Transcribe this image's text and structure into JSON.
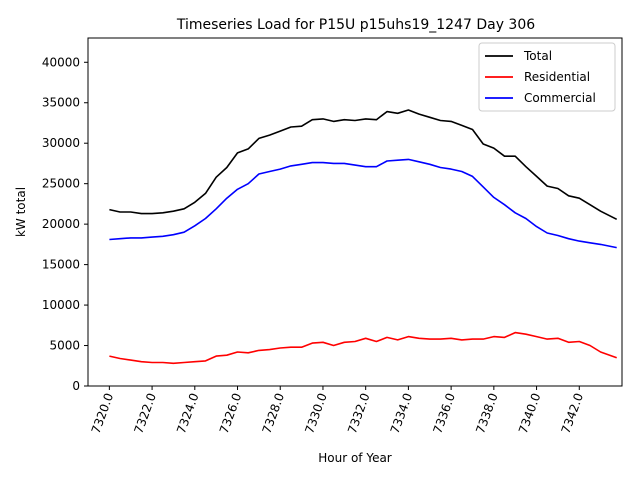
{
  "chart_data": {
    "type": "line",
    "title": "Timeseries Load for P15U p15uhs19_1247  Day 306",
    "xlabel": "Hour of Year",
    "ylabel": "kW total",
    "xlim": [
      7319.0,
      7344.0
    ],
    "ylim": [
      0,
      43000
    ],
    "xticks": [
      7320.0,
      7322.0,
      7324.0,
      7326.0,
      7328.0,
      7330.0,
      7332.0,
      7334.0,
      7336.0,
      7338.0,
      7340.0,
      7342.0
    ],
    "xtick_labels": [
      "7320.0",
      "7322.0",
      "7324.0",
      "7326.0",
      "7328.0",
      "7330.0",
      "7332.0",
      "7334.0",
      "7336.0",
      "7338.0",
      "7340.0",
      "7342.0"
    ],
    "yticks": [
      0,
      5000,
      10000,
      15000,
      20000,
      25000,
      30000,
      35000,
      40000
    ],
    "ytick_labels": [
      "0",
      "5000",
      "10000",
      "15000",
      "20000",
      "25000",
      "30000",
      "35000",
      "40000"
    ],
    "legend_position": "top-right",
    "x": [
      7320.0,
      7320.5,
      7321.0,
      7321.5,
      7322.0,
      7322.5,
      7323.0,
      7323.5,
      7324.0,
      7324.5,
      7325.0,
      7325.5,
      7326.0,
      7326.5,
      7327.0,
      7327.5,
      7328.0,
      7328.5,
      7329.0,
      7329.5,
      7330.0,
      7330.5,
      7331.0,
      7331.5,
      7332.0,
      7332.5,
      7333.0,
      7333.5,
      7334.0,
      7334.5,
      7335.0,
      7335.5,
      7336.0,
      7336.5,
      7337.0,
      7337.5,
      7338.0,
      7338.5,
      7339.0,
      7339.5,
      7340.0,
      7340.5,
      7341.0,
      7341.5,
      7342.0,
      7342.5,
      7343.0,
      7343.75
    ],
    "series": [
      {
        "name": "Total",
        "color": "#000000",
        "values": [
          21800,
          21500,
          21500,
          21300,
          21300,
          21400,
          21600,
          21900,
          22700,
          23800,
          25800,
          27000,
          28800,
          29300,
          30600,
          31000,
          31500,
          32000,
          32100,
          32900,
          33000,
          32700,
          32900,
          32800,
          33000,
          32900,
          33900,
          33700,
          34100,
          33600,
          33200,
          32800,
          32700,
          32200,
          31700,
          29900,
          29400,
          28400,
          28400,
          27100,
          25900,
          24700,
          24400,
          23500,
          23200,
          22400,
          21600,
          20600
        ]
      },
      {
        "name": "Residential",
        "color": "#ff0000",
        "values": [
          3700,
          3400,
          3200,
          3000,
          2900,
          2900,
          2800,
          2900,
          3000,
          3100,
          3700,
          3800,
          4200,
          4100,
          4400,
          4500,
          4700,
          4800,
          4800,
          5300,
          5400,
          5000,
          5400,
          5500,
          5900,
          5500,
          6000,
          5700,
          6100,
          5900,
          5800,
          5800,
          5900,
          5700,
          5800,
          5800,
          6100,
          6000,
          6600,
          6400,
          6100,
          5800,
          5900,
          5400,
          5500,
          5000,
          4200,
          3500
        ]
      },
      {
        "name": "Commercial",
        "color": "#0000ff",
        "values": [
          18100,
          18200,
          18300,
          18300,
          18400,
          18500,
          18700,
          19000,
          19800,
          20700,
          21900,
          23200,
          24300,
          25000,
          26200,
          26500,
          26800,
          27200,
          27400,
          27600,
          27600,
          27500,
          27500,
          27300,
          27100,
          27100,
          27800,
          27900,
          28000,
          27700,
          27400,
          27000,
          26800,
          26500,
          25900,
          24600,
          23300,
          22400,
          21400,
          20700,
          19700,
          18900,
          18600,
          18200,
          17900,
          17700,
          17500,
          17100
        ]
      }
    ]
  }
}
